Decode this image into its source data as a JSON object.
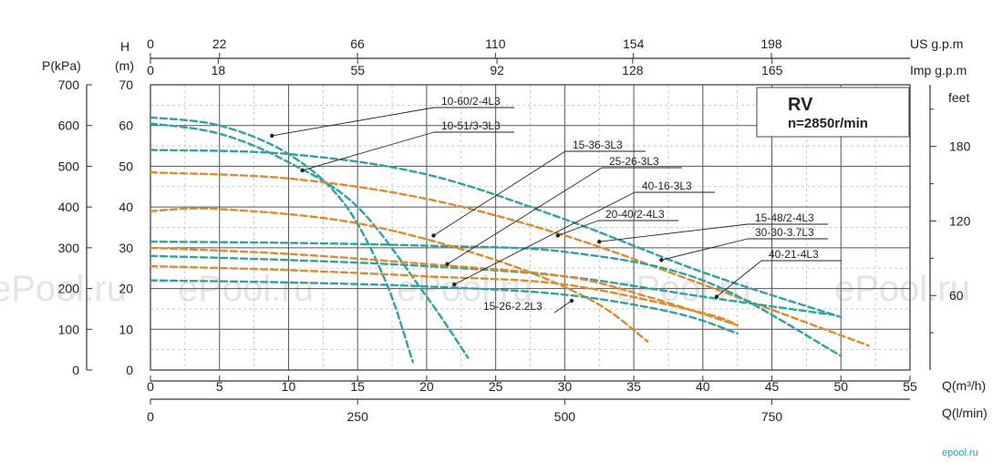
{
  "chart_data": {
    "type": "line",
    "title": "RV",
    "subtitle": "n=2850r/min",
    "watermark": "ePool.ru",
    "watermark_small": "epool.ru",
    "colors": {
      "teal": "#2aa3a3",
      "orange": "#e08a2a",
      "grid": "#555555",
      "minor_grid": "#bdbdbd"
    },
    "axes": {
      "x_m3h": {
        "label": "Q(m³/h)",
        "range": [
          0,
          55
        ],
        "ticks": [
          "0",
          "5",
          "10",
          "15",
          "20",
          "25",
          "30",
          "35",
          "40",
          "45",
          "50",
          "55"
        ]
      },
      "x_lmin": {
        "label": "Q(l/min)",
        "range": [
          0,
          916.7
        ],
        "ticks": [
          "0",
          "250",
          "500",
          "750"
        ]
      },
      "x_usgpm": {
        "label": "US g.p.m",
        "ticks": [
          "0",
          "22",
          "66",
          "110",
          "154",
          "198"
        ]
      },
      "x_impgpm": {
        "label": "Imp g.p.m",
        "ticks": [
          "0",
          "18",
          "55",
          "92",
          "128",
          "165"
        ]
      },
      "y_m": {
        "label_line1": "H",
        "label_line2": "(m)",
        "range": [
          0,
          70
        ],
        "ticks": [
          "0",
          "10",
          "20",
          "30",
          "40",
          "50",
          "60",
          "70"
        ]
      },
      "y_kpa": {
        "label": "P(kPa)",
        "ticks": [
          "0",
          "100",
          "200",
          "300",
          "400",
          "500",
          "600",
          "700"
        ]
      },
      "y_feet": {
        "label": "feet",
        "ticks": [
          "60",
          "120",
          "180"
        ]
      }
    },
    "series": [
      {
        "name": "10-60/2-4L3",
        "color": "teal",
        "x": [
          0,
          5,
          10,
          14,
          17,
          19
        ],
        "y": [
          62,
          60,
          53,
          41,
          22,
          2
        ]
      },
      {
        "name": "10-51/3-3L3",
        "color": "teal",
        "x": [
          0,
          5,
          10,
          15,
          20,
          23
        ],
        "y": [
          60.5,
          58,
          51,
          40,
          18,
          3
        ]
      },
      {
        "name": "15-36-3L3",
        "color": "teal",
        "x": [
          0,
          10,
          20,
          30,
          40,
          50
        ],
        "y": [
          54,
          53,
          48,
          37,
          24,
          13
        ]
      },
      {
        "name": "25-26-3L3",
        "color": "orange",
        "x": [
          0,
          10,
          20,
          30,
          40,
          52
        ],
        "y": [
          48.5,
          47,
          42,
          33,
          21,
          6
        ]
      },
      {
        "name": "40-16-3L3",
        "color": "teal",
        "x": [
          0,
          10,
          20,
          30,
          40,
          50
        ],
        "y": [
          31.5,
          31.2,
          30.5,
          29,
          22,
          3.5
        ]
      },
      {
        "name": "20-40/2-4L3",
        "color": "orange",
        "x": [
          0,
          5,
          15,
          25,
          32,
          36
        ],
        "y": [
          39,
          39.5,
          36,
          27,
          17,
          7
        ]
      },
      {
        "name": "15-48/2-4L3",
        "color": "teal",
        "x": [
          0,
          10,
          20,
          30,
          40,
          49.5
        ],
        "y": [
          28,
          27,
          25.5,
          23,
          18,
          13.5
        ]
      },
      {
        "name": "30-30-3.7L3",
        "color": "orange",
        "x": [
          0,
          10,
          20,
          30,
          36,
          42.5
        ],
        "y": [
          30,
          28.5,
          26,
          23,
          18,
          11
        ]
      },
      {
        "name": "40-21-4L3",
        "color": "orange",
        "x": [
          0,
          10,
          20,
          30,
          40,
          42.5
        ],
        "y": [
          25.5,
          24.5,
          23,
          21,
          14,
          11
        ]
      },
      {
        "name": "15-26-2.2L3",
        "color": "teal",
        "x": [
          0,
          10,
          20,
          30,
          38,
          42.5
        ],
        "y": [
          22,
          21.5,
          20.5,
          18.5,
          14,
          9
        ]
      }
    ],
    "labels": [
      {
        "text": "10-60/2-4L3",
        "target": [
          8.8,
          57.5
        ],
        "color": "teal"
      },
      {
        "text": "10-51/3-3L3",
        "target": [
          11,
          49
        ],
        "color": "teal"
      },
      {
        "text": "15-36-3L3",
        "target": [
          20.5,
          33
        ],
        "color": "orange"
      },
      {
        "text": "25-26-3L3",
        "target": [
          21.5,
          26
        ],
        "color": "orange"
      },
      {
        "text": "40-16-3L3",
        "target": [
          22,
          21
        ],
        "color": "teal"
      },
      {
        "text": "20-40/2-4L3",
        "target": [
          29.5,
          33
        ],
        "color": "orange"
      },
      {
        "text": "15-48/2-4L3",
        "target": [
          32.5,
          31.5
        ],
        "color": "teal"
      },
      {
        "text": "30-30-3.7L3",
        "target": [
          37,
          27
        ],
        "color": "teal"
      },
      {
        "text": "40-21-4L3",
        "target": [
          41,
          18
        ],
        "color": "orange"
      },
      {
        "text": "15-26-2.2L3",
        "target": [
          30.5,
          17
        ],
        "color": "orange"
      }
    ],
    "grid": true
  }
}
